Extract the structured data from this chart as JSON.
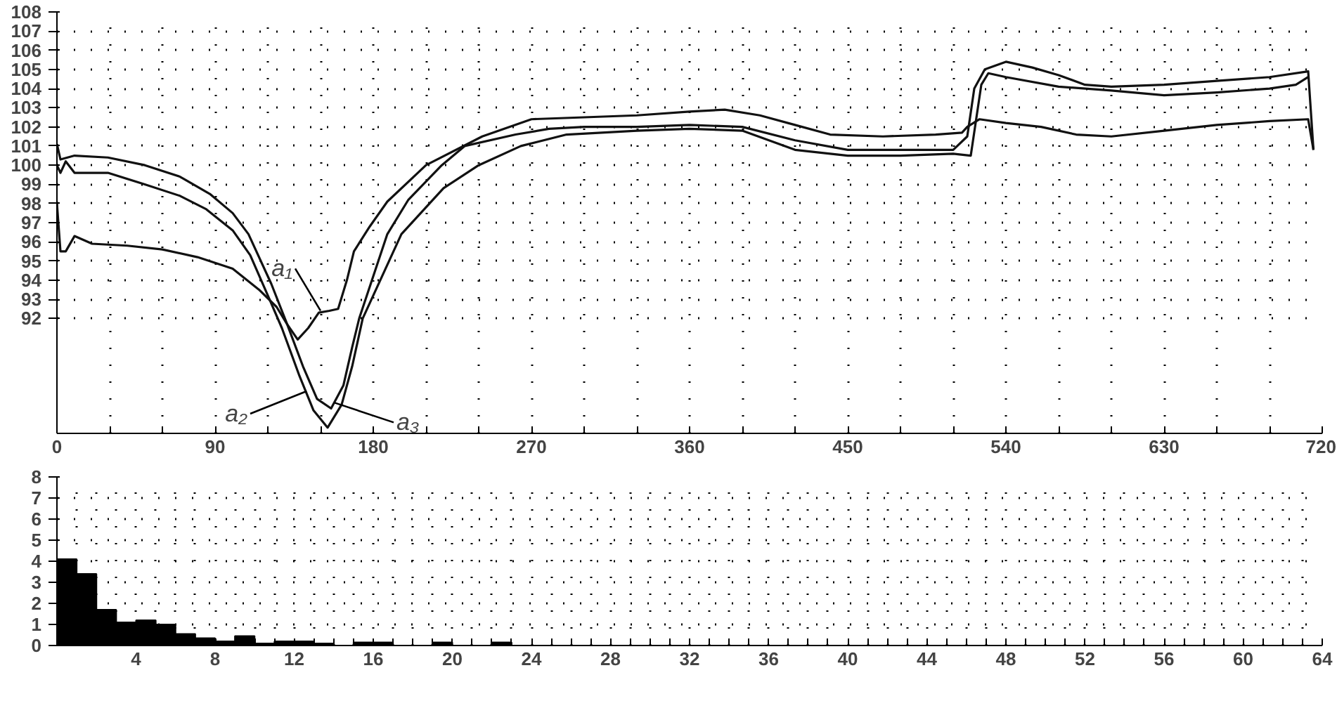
{
  "chart_data": [
    {
      "type": "line",
      "xlim": [
        0,
        720
      ],
      "ylim": [
        86,
        108
      ],
      "xticks": [
        0,
        {
          "value": 30,
          "label": null
        },
        {
          "value": 60,
          "label": null
        },
        90,
        {
          "value": 120,
          "label": null
        },
        {
          "value": 150,
          "label": null
        },
        180,
        {
          "value": 210,
          "label": null
        },
        {
          "value": 240,
          "label": null
        },
        270,
        {
          "value": 300,
          "label": null
        },
        {
          "value": 330,
          "label": null
        },
        360,
        {
          "value": 390,
          "label": null
        },
        {
          "value": 420,
          "label": null
        },
        450,
        {
          "value": 480,
          "label": null
        },
        {
          "value": 510,
          "label": null
        },
        540,
        {
          "value": 570,
          "label": null
        },
        {
          "value": 600,
          "label": null
        },
        630,
        {
          "value": 660,
          "label": null
        },
        {
          "value": 690,
          "label": null
        },
        720
      ],
      "yticks": [
        92,
        93,
        94,
        95,
        96,
        97,
        98,
        99,
        100,
        101,
        102,
        103,
        104,
        105,
        106,
        107,
        108
      ],
      "grid": true,
      "marker": "none",
      "line_style": "solid",
      "series": [
        {
          "color": "#111111",
          "x": [
            0,
            2,
            5,
            10,
            20,
            40,
            60,
            80,
            100,
            115,
            125,
            131,
            137,
            143,
            149,
            155,
            160,
            165,
            169,
            178,
            188,
            210,
            242,
            270,
            300,
            330,
            360,
            380,
            400,
            420,
            440,
            470,
            500,
            515,
            518,
            525,
            540,
            560,
            580,
            600,
            630,
            660,
            690,
            712,
            715
          ],
          "values": [
            98.0,
            95.5,
            95.5,
            96.3,
            95.9,
            95.8,
            95.6,
            95.2,
            94.6,
            93.5,
            92.6,
            91.7,
            90.9,
            91.5,
            92.3,
            92.4,
            92.5,
            94.0,
            95.5,
            96.8,
            98.1,
            100.0,
            101.5,
            102.4,
            102.5,
            102.6,
            102.8,
            102.9,
            102.6,
            102.1,
            101.6,
            101.5,
            101.6,
            101.7,
            102.0,
            102.4,
            102.2,
            102.0,
            101.6,
            101.5,
            101.8,
            102.1,
            102.3,
            102.4,
            100.8
          ]
        },
        {
          "color": "#111111",
          "x": [
            0,
            2,
            5,
            10,
            29,
            50,
            70,
            85,
            100,
            110,
            120,
            128,
            138,
            146,
            154,
            162,
            168,
            174,
            196,
            220,
            240,
            264,
            290,
            330,
            360,
            390,
            420,
            450,
            480,
            510,
            520,
            526,
            530,
            540,
            570,
            600,
            630,
            660,
            690,
            705,
            712
          ],
          "values": [
            100.0,
            99.6,
            100.2,
            99.6,
            99.6,
            99.0,
            98.4,
            97.7,
            96.6,
            95.3,
            93.2,
            91.5,
            89.0,
            87.2,
            86.3,
            87.5,
            89.5,
            92.0,
            96.4,
            98.8,
            100.0,
            101.0,
            101.6,
            101.8,
            101.9,
            101.8,
            100.8,
            100.5,
            100.5,
            100.6,
            100.5,
            104.2,
            104.8,
            104.6,
            104.1,
            103.9,
            103.65,
            103.8,
            104.0,
            104.2,
            104.6
          ]
        },
        {
          "color": "#111111",
          "x": [
            0,
            2,
            10,
            29,
            50,
            70,
            87,
            100,
            109,
            122,
            131,
            140,
            148,
            156,
            163,
            168,
            172,
            188,
            200,
            219,
            232,
            261,
            280,
            300,
            330,
            360,
            390,
            420,
            450,
            480,
            510,
            518,
            522,
            528,
            540,
            555,
            570,
            585,
            600,
            630,
            660,
            690,
            712,
            715
          ],
          "values": [
            101.1,
            100.3,
            100.5,
            100.4,
            100.0,
            99.4,
            98.5,
            97.5,
            96.4,
            93.8,
            91.7,
            89.5,
            87.8,
            87.3,
            88.5,
            90.5,
            92.0,
            96.4,
            98.2,
            100.0,
            101.0,
            101.6,
            101.9,
            102.0,
            102.0,
            102.1,
            102.0,
            101.3,
            100.8,
            100.8,
            100.8,
            101.5,
            104.0,
            105.0,
            105.4,
            105.1,
            104.7,
            104.2,
            104.1,
            104.2,
            104.4,
            104.6,
            104.9,
            100.8
          ]
        }
      ],
      "annotations": [
        {
          "text": "a₁",
          "x": 150,
          "y": 92.4
        },
        {
          "text": "a₂",
          "x": 142,
          "y": 88.2
        },
        {
          "text": "a₃",
          "x": 158,
          "y": 87.6
        }
      ]
    },
    {
      "type": "histogram",
      "xlim": [
        0,
        64
      ],
      "ylim": [
        0,
        8
      ],
      "bins": [
        0,
        1,
        2,
        3,
        4,
        5,
        6,
        7,
        8,
        9,
        10,
        11,
        12,
        13,
        14,
        15,
        16,
        17,
        18,
        19,
        20,
        21,
        22,
        23,
        24
      ],
      "values": [
        4.1,
        3.4,
        1.7,
        1.1,
        1.2,
        1.0,
        0.55,
        0.35,
        0.2,
        0.45,
        0.1,
        0.2,
        0.2,
        0.1,
        null,
        0.15,
        0.15,
        null,
        null,
        0.15,
        null,
        null,
        0.15,
        null
      ],
      "color": "#000000",
      "xticks": [
        {
          "value": 0,
          "label": null
        },
        {
          "value": 1,
          "label": null
        },
        {
          "value": 2,
          "label": null
        },
        {
          "value": 3,
          "label": null
        },
        4,
        {
          "value": 5,
          "label": null
        },
        {
          "value": 6,
          "label": null
        },
        {
          "value": 7,
          "label": null
        },
        8,
        {
          "value": 9,
          "label": null
        },
        {
          "value": 10,
          "label": null
        },
        {
          "value": 11,
          "label": null
        },
        12,
        {
          "value": 13,
          "label": null
        },
        {
          "value": 14,
          "label": null
        },
        {
          "value": 15,
          "label": null
        },
        16,
        {
          "value": 17,
          "label": null
        },
        {
          "value": 18,
          "label": null
        },
        {
          "value": 19,
          "label": null
        },
        20,
        {
          "value": 21,
          "label": null
        },
        {
          "value": 22,
          "label": null
        },
        {
          "value": 23,
          "label": null
        },
        24,
        {
          "value": 25,
          "label": null
        },
        {
          "value": 26,
          "label": null
        },
        {
          "value": 27,
          "label": null
        },
        28,
        {
          "value": 29,
          "label": null
        },
        {
          "value": 30,
          "label": null
        },
        {
          "value": 31,
          "label": null
        },
        32,
        {
          "value": 33,
          "label": null
        },
        {
          "value": 34,
          "label": null
        },
        {
          "value": 35,
          "label": null
        },
        36,
        {
          "value": 37,
          "label": null
        },
        {
          "value": 38,
          "label": null
        },
        {
          "value": 39,
          "label": null
        },
        40,
        {
          "value": 41,
          "label": null
        },
        {
          "value": 42,
          "label": null
        },
        {
          "value": 43,
          "label": null
        },
        44,
        {
          "value": 45,
          "label": null
        },
        {
          "value": 46,
          "label": null
        },
        {
          "value": 47,
          "label": null
        },
        48,
        {
          "value": 49,
          "label": null
        },
        {
          "value": 50,
          "label": null
        },
        {
          "value": 51,
          "label": null
        },
        52,
        {
          "value": 53,
          "label": null
        },
        {
          "value": 54,
          "label": null
        },
        {
          "value": 55,
          "label": null
        },
        56,
        {
          "value": 57,
          "label": null
        },
        {
          "value": 58,
          "label": null
        },
        {
          "value": 59,
          "label": null
        },
        60,
        {
          "value": 61,
          "label": null
        },
        {
          "value": 62,
          "label": null
        },
        {
          "value": 63,
          "label": null
        },
        64
      ],
      "yticks": [
        0,
        1,
        2,
        3,
        4,
        5,
        6,
        7,
        8
      ],
      "grid": true
    }
  ]
}
